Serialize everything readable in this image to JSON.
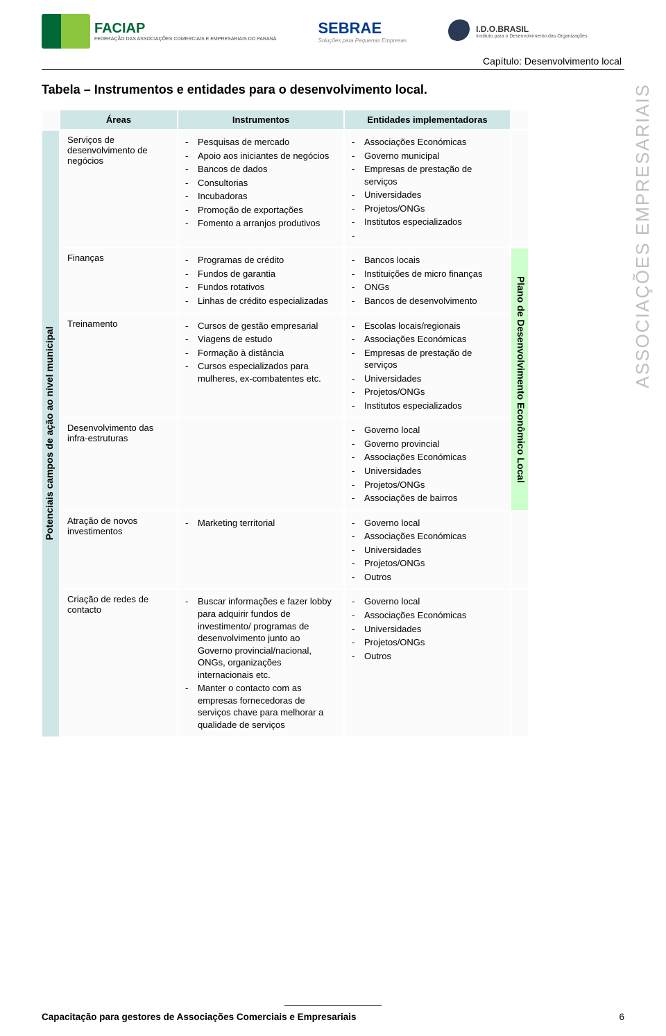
{
  "colors": {
    "header_cell_bg": "#cfe6e6",
    "right_side_bg": "#ccffcc",
    "body_cell_bg": "#fbfbfb",
    "sidebar_text": "#bfbfbf",
    "page_bg": "#ffffff",
    "text": "#000000"
  },
  "logos": {
    "faciap_title": "FACIAP",
    "faciap_sub": "FEDERAÇÃO DAS ASSOCIAÇÕES COMERCIAIS E EMPRESARIAIS DO PARANÁ",
    "sebrae": "SEBRAE",
    "sebrae_sub": "Soluções para Pequenas Empresas",
    "ido_title": "I.D.O.BRASIL",
    "ido_sub": "Instituto para o Desenvolvimento das Organizações"
  },
  "chapter": "Capítulo: Desenvolvimento local",
  "title": "Tabela – Instrumentos e entidades para o desenvolvimento local.",
  "sidebar_right": "ASSOCIAÇÕES EMPRESARIAIS",
  "table": {
    "side_left": "Potenciais campos de ação ao nível municipal",
    "side_right": "Plano de Desenvolvimento Econômico Local",
    "headers": {
      "areas": "Áreas",
      "instrumentos": "Instrumentos",
      "entidades": "Entidades implementadoras"
    },
    "rows": [
      {
        "area": "Serviços de desenvolvimento de negócios",
        "instrumentos": [
          "Pesquisas de mercado",
          "Apoio aos iniciantes de negócios",
          "Bancos de dados",
          "Consultorias",
          "Incubadoras",
          "Promoção de exportações",
          "Fomento a arranjos produtivos"
        ],
        "entidades": [
          "Associações Económicas",
          "Governo municipal",
          "Empresas de prestação de serviços",
          "Universidades",
          "Projetos/ONGs",
          "Institutos especializados",
          ""
        ]
      },
      {
        "area": "Finanças",
        "instrumentos": [
          "Programas de crédito",
          "Fundos de garantia",
          "Fundos rotativos",
          "Linhas de crédito especializadas"
        ],
        "entidades": [
          "Bancos locais",
          "Instituições de micro finanças",
          "ONGs",
          "Bancos de desenvolvimento"
        ]
      },
      {
        "area": "Treinamento",
        "instrumentos": [
          "Cursos de gestão empresarial",
          "Viagens de estudo",
          "Formação à distância",
          "Cursos especializados para mulheres, ex-combatentes etc."
        ],
        "entidades": [
          "Escolas locais/regionais",
          "Associações Económicas",
          "Empresas de prestação de serviços",
          "Universidades",
          "Projetos/ONGs",
          "Institutos especializados"
        ]
      },
      {
        "area": "Desenvolvimento das infra-estruturas",
        "instrumentos": [],
        "entidades": [
          "Governo local",
          "Governo provincial",
          "Associações Económicas",
          "Universidades",
          "Projetos/ONGs",
          "Associações de bairros"
        ]
      },
      {
        "area": "Atração de novos investimentos",
        "instrumentos": [
          "Marketing territorial"
        ],
        "entidades": [
          "Governo local",
          "Associações Económicas",
          "Universidades",
          "Projetos/ONGs",
          "Outros"
        ]
      },
      {
        "area": "Criação de redes de contacto",
        "instrumentos": [
          "Buscar informações e fazer lobby para adquirir fundos de investimento/ programas de desenvolvimento junto ao Governo provincial/nacional, ONGs, organizações internacionais etc.",
          "Manter o contacto com as empresas fornecedoras de serviços chave para melhorar a qualidade de serviços"
        ],
        "entidades": [
          "Governo local",
          "Associações Económicas",
          "Universidades",
          "Projetos/ONGs",
          "Outros"
        ]
      }
    ]
  },
  "footer": {
    "title": "Capacitação para gestores de Associações Comerciais e Empresariais",
    "page": "6"
  }
}
